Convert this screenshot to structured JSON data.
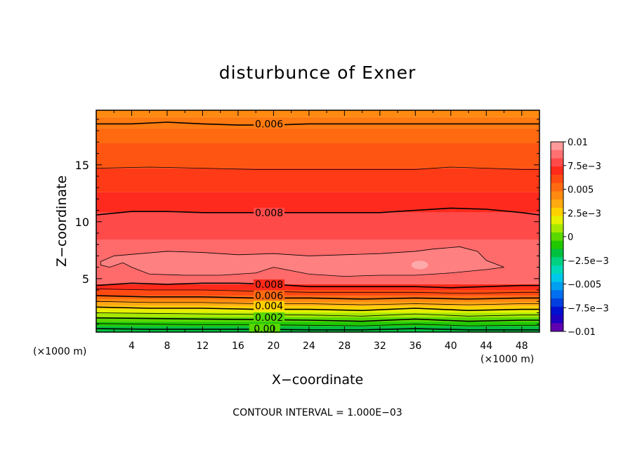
{
  "chart_data": {
    "type": "contour",
    "title": "disturbunce of Exner",
    "xlabel": "X−coordinate",
    "ylabel": "Z−coordinate",
    "x_units_left": "(×1000 m)",
    "x_units_right": "(×1000 m)",
    "xlim": [
      0,
      50
    ],
    "ylim": [
      0.3,
      19.8
    ],
    "x_ticks": [
      4,
      8,
      12,
      16,
      20,
      24,
      28,
      32,
      36,
      40,
      44,
      48
    ],
    "x_tick_labels": [
      "4",
      "8",
      "12",
      "16",
      "20",
      "24",
      "28",
      "32",
      "36",
      "40",
      "44",
      "48"
    ],
    "y_ticks": [
      5,
      10,
      15
    ],
    "y_tick_labels": [
      "5",
      "10",
      "15"
    ],
    "note": "CONTOUR INTERVAL = 1.000E−03",
    "colorbar": {
      "range": [
        -0.01,
        0.01
      ],
      "tick_values": [
        0.01,
        0.0075,
        0.005,
        0.0025,
        0,
        -0.0025,
        -0.005,
        -0.0075,
        -0.01
      ],
      "tick_labels": [
        "0.01",
        "7.5e−3",
        "0.005",
        "2.5e−3",
        "0",
        "−2.5e−3",
        "−0.005",
        "−7.5e−3",
        "−0.01"
      ],
      "colors_top_to_bottom": [
        "#ff9a9a",
        "#ff7070",
        "#ff4a4a",
        "#ff2a1a",
        "#ff4a12",
        "#ff6a10",
        "#ff8a10",
        "#ffaa10",
        "#ffd000",
        "#e6f000",
        "#a6e800",
        "#5ad800",
        "#20c800",
        "#00c040",
        "#00d080",
        "#00d8b8",
        "#00c8e8",
        "#00a0f0",
        "#0070f0",
        "#0040e0",
        "#0010d0",
        "#2000c0",
        "#6000b0"
      ]
    },
    "contour_labels": [
      {
        "text": "0.006",
        "x": 19.5,
        "z": 18.6
      },
      {
        "text": "0.008",
        "x": 19.5,
        "z": 10.8
      },
      {
        "text": "0.008",
        "x": 19.5,
        "z": 4.5
      },
      {
        "text": "0.006",
        "x": 19.5,
        "z": 3.5
      },
      {
        "text": "0.004",
        "x": 19.5,
        "z": 2.6
      },
      {
        "text": "0.002",
        "x": 19.5,
        "z": 1.6
      },
      {
        "text": "0.00",
        "x": 19.0,
        "z": 0.6
      }
    ],
    "contour_lines": [
      {
        "level": 0.006,
        "points": [
          [
            0,
            18.6
          ],
          [
            4,
            18.6
          ],
          [
            8,
            18.75
          ],
          [
            12,
            18.6
          ],
          [
            16,
            18.5
          ],
          [
            20,
            18.5
          ],
          [
            24,
            18.6
          ],
          [
            28,
            18.6
          ],
          [
            32,
            18.6
          ],
          [
            36,
            18.6
          ],
          [
            40,
            18.6
          ],
          [
            44,
            18.6
          ],
          [
            48,
            18.6
          ],
          [
            50,
            18.6
          ]
        ]
      },
      {
        "level": 0.007,
        "points": [
          [
            0,
            14.7
          ],
          [
            6,
            14.8
          ],
          [
            12,
            14.7
          ],
          [
            18,
            14.6
          ],
          [
            24,
            14.6
          ],
          [
            30,
            14.6
          ],
          [
            36,
            14.6
          ],
          [
            40,
            14.8
          ],
          [
            44,
            14.7
          ],
          [
            48,
            14.6
          ],
          [
            50,
            14.6
          ]
        ]
      },
      {
        "level": 0.008,
        "points": [
          [
            0,
            10.6
          ],
          [
            4,
            10.9
          ],
          [
            8,
            10.9
          ],
          [
            12,
            10.8
          ],
          [
            16,
            10.8
          ],
          [
            20,
            10.8
          ],
          [
            24,
            10.8
          ],
          [
            28,
            10.8
          ],
          [
            32,
            10.8
          ],
          [
            36,
            11.0
          ],
          [
            40,
            11.2
          ],
          [
            44,
            11.1
          ],
          [
            48,
            10.8
          ],
          [
            50,
            10.6
          ]
        ]
      },
      {
        "level": 0.008,
        "points": [
          [
            0,
            4.4
          ],
          [
            4,
            4.6
          ],
          [
            8,
            4.5
          ],
          [
            12,
            4.6
          ],
          [
            16,
            4.6
          ],
          [
            20,
            4.5
          ],
          [
            24,
            4.3
          ],
          [
            28,
            4.3
          ],
          [
            32,
            4.3
          ],
          [
            36,
            4.3
          ],
          [
            40,
            4.2
          ],
          [
            44,
            4.3
          ],
          [
            48,
            4.4
          ],
          [
            50,
            4.4
          ]
        ]
      },
      {
        "level": 0.007,
        "points": [
          [
            0,
            4.1
          ],
          [
            6,
            4.0
          ],
          [
            12,
            4.0
          ],
          [
            18,
            3.9
          ],
          [
            24,
            3.8
          ],
          [
            30,
            3.8
          ],
          [
            36,
            3.8
          ],
          [
            42,
            3.7
          ],
          [
            48,
            3.8
          ],
          [
            50,
            3.8
          ]
        ]
      },
      {
        "level": 0.006,
        "points": [
          [
            0,
            3.5
          ],
          [
            6,
            3.4
          ],
          [
            12,
            3.4
          ],
          [
            18,
            3.3
          ],
          [
            24,
            3.3
          ],
          [
            30,
            3.2
          ],
          [
            36,
            3.3
          ],
          [
            42,
            3.2
          ],
          [
            48,
            3.3
          ],
          [
            50,
            3.3
          ]
        ]
      },
      {
        "level": 0.005,
        "points": [
          [
            0,
            3.0
          ],
          [
            6,
            2.9
          ],
          [
            12,
            2.9
          ],
          [
            18,
            2.8
          ],
          [
            24,
            2.8
          ],
          [
            30,
            2.7
          ],
          [
            36,
            2.8
          ],
          [
            42,
            2.7
          ],
          [
            48,
            2.8
          ],
          [
            50,
            2.8
          ]
        ]
      },
      {
        "level": 0.004,
        "points": [
          [
            0,
            2.5
          ],
          [
            6,
            2.4
          ],
          [
            12,
            2.4
          ],
          [
            18,
            2.3
          ],
          [
            24,
            2.3
          ],
          [
            30,
            2.2
          ],
          [
            36,
            2.4
          ],
          [
            42,
            2.2
          ],
          [
            48,
            2.3
          ],
          [
            50,
            2.3
          ]
        ]
      },
      {
        "level": 0.003,
        "points": [
          [
            0,
            2.0
          ],
          [
            6,
            1.95
          ],
          [
            12,
            1.9
          ],
          [
            18,
            1.85
          ],
          [
            24,
            1.8
          ],
          [
            30,
            1.7
          ],
          [
            36,
            1.9
          ],
          [
            42,
            1.7
          ],
          [
            48,
            1.8
          ],
          [
            50,
            1.8
          ]
        ]
      },
      {
        "level": 0.002,
        "points": [
          [
            0,
            1.55
          ],
          [
            6,
            1.5
          ],
          [
            12,
            1.45
          ],
          [
            18,
            1.4
          ],
          [
            24,
            1.35
          ],
          [
            30,
            1.25
          ],
          [
            36,
            1.45
          ],
          [
            42,
            1.25
          ],
          [
            48,
            1.35
          ],
          [
            50,
            1.35
          ]
        ]
      },
      {
        "level": 0.001,
        "points": [
          [
            0,
            1.05
          ],
          [
            6,
            1.0
          ],
          [
            12,
            0.95
          ],
          [
            18,
            0.95
          ],
          [
            24,
            0.9
          ],
          [
            30,
            0.85
          ],
          [
            36,
            1.0
          ],
          [
            42,
            0.85
          ],
          [
            48,
            0.9
          ],
          [
            50,
            0.9
          ]
        ]
      },
      {
        "level": 0.0,
        "points": [
          [
            0,
            0.6
          ],
          [
            6,
            0.55
          ],
          [
            12,
            0.55
          ],
          [
            18,
            0.55
          ],
          [
            24,
            0.5
          ],
          [
            30,
            0.5
          ],
          [
            36,
            0.6
          ],
          [
            42,
            0.5
          ],
          [
            48,
            0.5
          ],
          [
            50,
            0.5
          ]
        ]
      }
    ],
    "closed_contour": {
      "level": 0.009,
      "points": [
        [
          0.5,
          6.5
        ],
        [
          2,
          7.0
        ],
        [
          5,
          7.2
        ],
        [
          8,
          7.4
        ],
        [
          12,
          7.3
        ],
        [
          16,
          7.1
        ],
        [
          20,
          7.2
        ],
        [
          24,
          7.0
        ],
        [
          28,
          7.1
        ],
        [
          32,
          7.2
        ],
        [
          36,
          7.4
        ],
        [
          38,
          7.6
        ],
        [
          41,
          7.8
        ],
        [
          43,
          7.4
        ],
        [
          44,
          6.6
        ],
        [
          46,
          6.0
        ],
        [
          44,
          5.8
        ],
        [
          40,
          5.5
        ],
        [
          36,
          5.3
        ],
        [
          32,
          5.3
        ],
        [
          28,
          5.2
        ],
        [
          24,
          5.4
        ],
        [
          20,
          6.0
        ],
        [
          18,
          5.5
        ],
        [
          14,
          5.3
        ],
        [
          10,
          5.3
        ],
        [
          6,
          5.4
        ],
        [
          4,
          6.0
        ],
        [
          3,
          6.4
        ],
        [
          1.5,
          6.0
        ],
        [
          0.5,
          6.2
        ]
      ]
    },
    "bands": [
      {
        "zmin": 19.2,
        "zmax": 19.8,
        "color": "#ff8a10"
      },
      {
        "zmin": 18.2,
        "zmax": 19.2,
        "color": "#ff7a10"
      },
      {
        "zmin": 16.9,
        "zmax": 18.2,
        "color": "#ff6a10"
      },
      {
        "zmin": 14.7,
        "zmax": 16.9,
        "color": "#ff5512"
      },
      {
        "zmin": 12.6,
        "zmax": 14.7,
        "color": "#ff3a16"
      },
      {
        "zmin": 10.8,
        "zmax": 12.6,
        "color": "#ff2a1e"
      },
      {
        "zmin": 8.4,
        "zmax": 10.8,
        "color": "#ff4a4a"
      },
      {
        "zmin": 4.5,
        "zmax": 8.4,
        "color": "#ff6a6a"
      },
      {
        "zmin": 4.0,
        "zmax": 4.5,
        "color": "#ff2a1a"
      },
      {
        "zmin": 3.5,
        "zmax": 4.0,
        "color": "#ff4a12"
      },
      {
        "zmin": 3.2,
        "zmax": 3.5,
        "color": "#ff6a10"
      },
      {
        "zmin": 2.9,
        "zmax": 3.2,
        "color": "#ff8a10"
      },
      {
        "zmin": 2.6,
        "zmax": 2.9,
        "color": "#ffaa10"
      },
      {
        "zmin": 2.3,
        "zmax": 2.6,
        "color": "#ffd000"
      },
      {
        "zmin": 2.0,
        "zmax": 2.3,
        "color": "#e6f000"
      },
      {
        "zmin": 1.6,
        "zmax": 2.0,
        "color": "#a6e800"
      },
      {
        "zmin": 1.2,
        "zmax": 1.6,
        "color": "#5ad800"
      },
      {
        "zmin": 0.8,
        "zmax": 1.2,
        "color": "#20c800"
      },
      {
        "zmin": 0.3,
        "zmax": 0.8,
        "color": "#00c040"
      }
    ],
    "core_color": "#ff8080",
    "spot": {
      "x": 36.5,
      "z": 6.2,
      "color": "#ffaaaa"
    }
  }
}
